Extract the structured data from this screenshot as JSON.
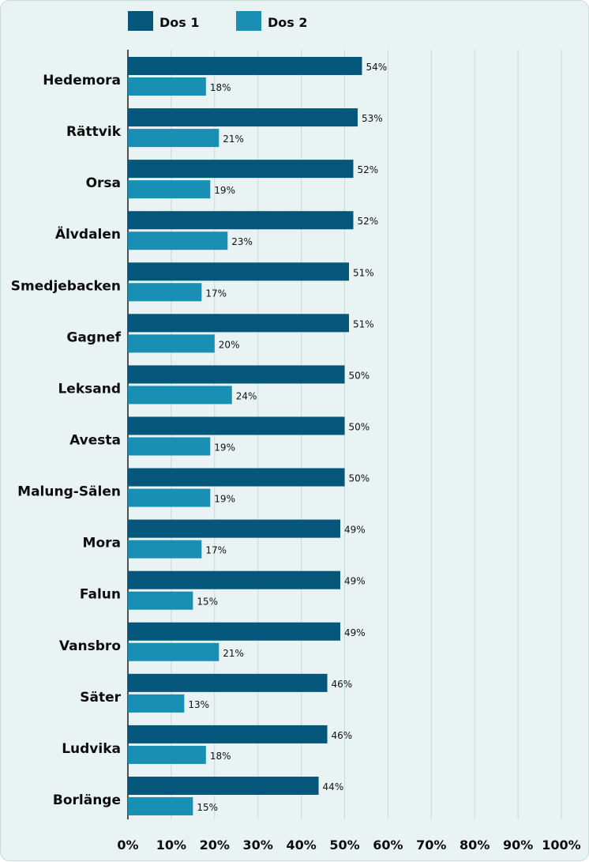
{
  "chart_data": {
    "type": "bar",
    "orientation": "horizontal",
    "categories": [
      "Hedemora",
      "Rättvik",
      "Orsa",
      "Älvdalen",
      "Smedjebacken",
      "Gagnef",
      "Leksand",
      "Avesta",
      "Malung-Sälen",
      "Mora",
      "Falun",
      "Vansbro",
      "Säter",
      "Ludvika",
      "Borlänge"
    ],
    "series": [
      {
        "name": "Dos 1",
        "color": "#04577a",
        "values": [
          54,
          53,
          52,
          52,
          51,
          51,
          50,
          50,
          50,
          49,
          49,
          49,
          46,
          46,
          44
        ]
      },
      {
        "name": "Dos 2",
        "color": "#1990b3",
        "values": [
          18,
          21,
          19,
          23,
          17,
          20,
          24,
          19,
          19,
          17,
          15,
          21,
          13,
          18,
          15
        ]
      }
    ],
    "value_suffix": "%",
    "xlim": [
      0,
      100
    ],
    "xticks": [
      "0%",
      "10%",
      "20%",
      "30%",
      "40%",
      "50%",
      "60%",
      "70%",
      "80%",
      "90%",
      "100%"
    ],
    "grid": true,
    "legend_position": "top"
  }
}
